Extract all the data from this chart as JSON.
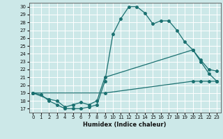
{
  "xlabel": "Humidex (Indice chaleur)",
  "bg_color": "#cce8e8",
  "line_color": "#1a7070",
  "grid_color": "#ffffff",
  "xlim": [
    -0.5,
    23.5
  ],
  "ylim": [
    16.5,
    30.5
  ],
  "xticks": [
    0,
    1,
    2,
    3,
    4,
    5,
    6,
    7,
    8,
    9,
    10,
    11,
    12,
    13,
    14,
    15,
    16,
    17,
    18,
    19,
    20,
    21,
    22,
    23
  ],
  "yticks": [
    17,
    18,
    19,
    20,
    21,
    22,
    23,
    24,
    25,
    26,
    27,
    28,
    29,
    30
  ],
  "line1_x": [
    0,
    1,
    2,
    3,
    4,
    5,
    6,
    7,
    8,
    9,
    10,
    11,
    12,
    13,
    14,
    15,
    16,
    17,
    18,
    19,
    20,
    21,
    22,
    23
  ],
  "line1_y": [
    19.0,
    18.8,
    18.0,
    17.5,
    17.0,
    17.0,
    17.0,
    17.2,
    17.5,
    20.5,
    26.5,
    28.5,
    30.0,
    30.0,
    29.2,
    27.8,
    28.2,
    28.2,
    27.0,
    25.5,
    24.5,
    23.0,
    21.5,
    20.5
  ],
  "line2_x": [
    0,
    2,
    3,
    4,
    5,
    6,
    7,
    8,
    9,
    20,
    21,
    22,
    23
  ],
  "line2_y": [
    19.0,
    18.2,
    18.0,
    17.2,
    17.5,
    17.8,
    17.5,
    18.0,
    21.0,
    24.5,
    23.2,
    22.0,
    21.8
  ],
  "line3_x": [
    0,
    9,
    20,
    21,
    22,
    23
  ],
  "line3_y": [
    19.0,
    19.0,
    20.5,
    20.5,
    20.5,
    20.5
  ]
}
